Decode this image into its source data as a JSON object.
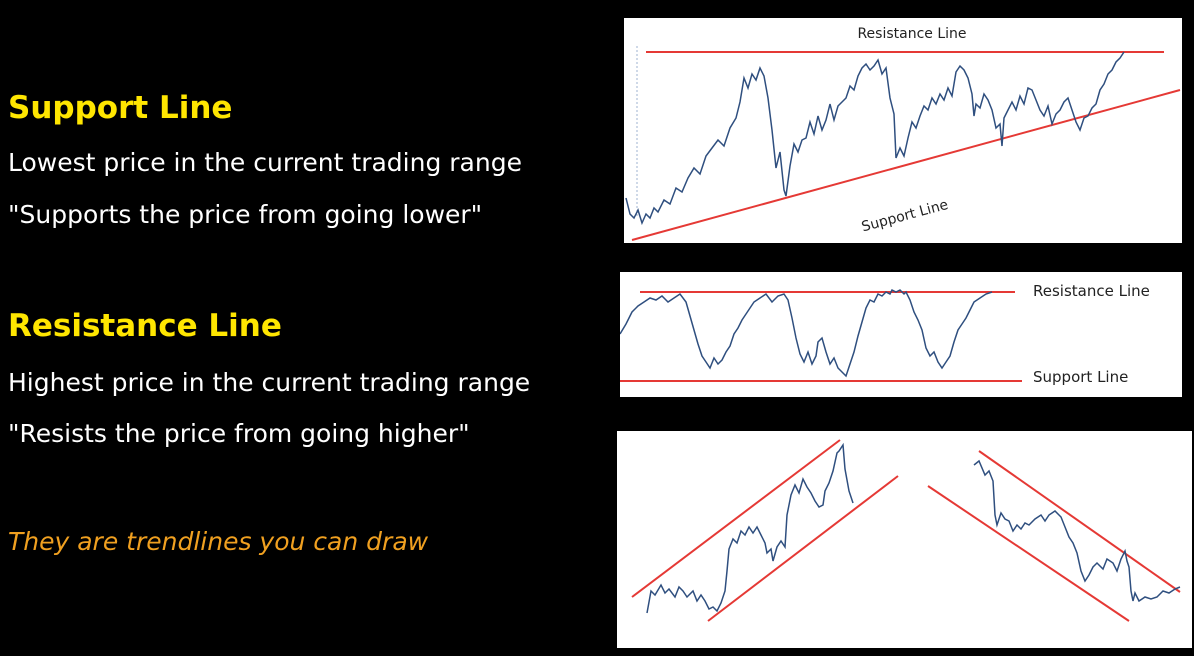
{
  "slide": {
    "support": {
      "title": "Support Line",
      "line1": "Lowest price in the current trading range",
      "line2": "\"Supports the price from going lower\""
    },
    "resistance": {
      "title": "Resistance Line",
      "line1": "Highest price in the current trading range",
      "line2": "\"Resists the price from going higher\""
    },
    "note": "They are trendlines you can draw"
  },
  "figures": {
    "top": {
      "resistance_label": "Resistance Line",
      "support_label": "Support Line"
    },
    "middle": {
      "resistance_label": "Resistance Line",
      "support_label": "Support Line"
    }
  },
  "colors": {
    "heading": "#ffe600",
    "note": "#f0a020",
    "trendline": "#e53935",
    "price": "#2f4f7f"
  }
}
